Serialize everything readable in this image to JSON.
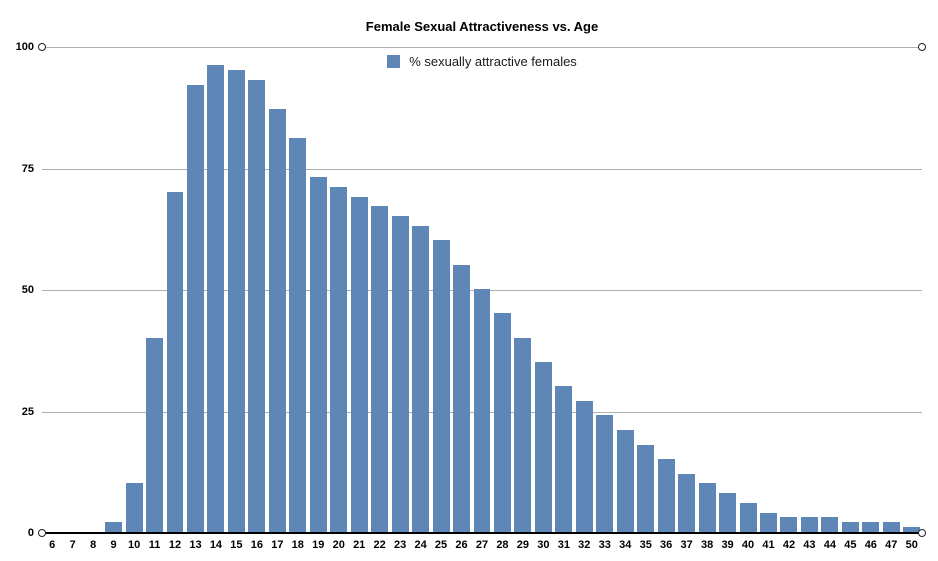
{
  "title": "Female Sexual Attractiveness vs. Age",
  "legend": {
    "label": "% sexually attractive females",
    "swatch_icon": "legend-swatch-square",
    "swatch_color": "#5e87b8"
  },
  "axis": {
    "ytick_labels": [
      "0",
      "25",
      "50",
      "75",
      "100"
    ],
    "handle_icon": "axis-endpoint-handle"
  },
  "colors": {
    "bar": "#5e87b8",
    "gridline": "#aeaeae",
    "axis_line": "#000000",
    "text": "#000000"
  },
  "chart_data": {
    "type": "bar",
    "title": "Female Sexual Attractiveness vs. Age",
    "xlabel": "",
    "ylabel": "",
    "ylim": [
      0,
      100
    ],
    "yticks": [
      0,
      25,
      50,
      75,
      100
    ],
    "grid": true,
    "legend_position": "top-center",
    "legend_entries": [
      "% sexually attractive females"
    ],
    "categories": [
      "6",
      "7",
      "8",
      "9",
      "10",
      "11",
      "12",
      "13",
      "14",
      "15",
      "16",
      "17",
      "18",
      "19",
      "20",
      "21",
      "22",
      "23",
      "24",
      "25",
      "26",
      "27",
      "28",
      "29",
      "30",
      "31",
      "32",
      "33",
      "34",
      "35",
      "36",
      "37",
      "38",
      "39",
      "40",
      "41",
      "42",
      "43",
      "44",
      "45",
      "46",
      "47",
      "50"
    ],
    "values": [
      0,
      0,
      0,
      2,
      10,
      40,
      70,
      92,
      96,
      95,
      93,
      87,
      81,
      73,
      71,
      69,
      67,
      65,
      63,
      60,
      55,
      50,
      45,
      40,
      35,
      30,
      27,
      24,
      21,
      18,
      15,
      12,
      10,
      8,
      6,
      4,
      3,
      3,
      3,
      2,
      2,
      2,
      1
    ]
  }
}
